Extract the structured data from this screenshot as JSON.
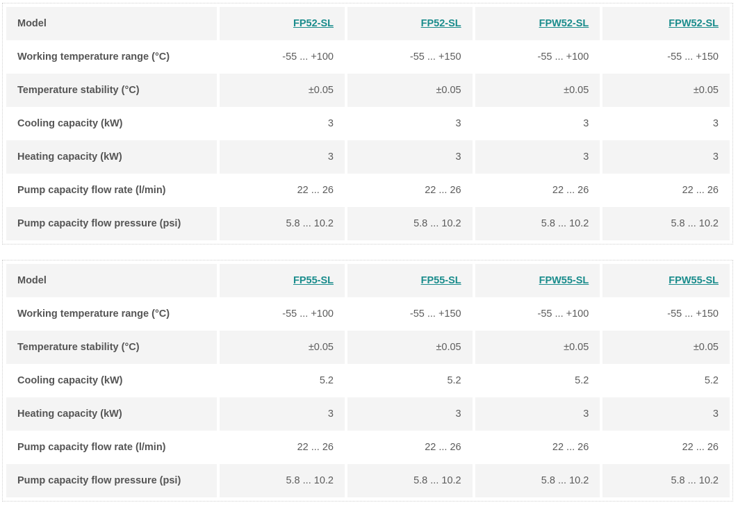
{
  "tables": [
    {
      "header": {
        "label": "Model",
        "models": [
          "FP52-SL",
          "FP52-SL",
          "FPW52-SL",
          "FPW52-SL"
        ]
      },
      "rows": [
        {
          "label": "Working temperature range (°C)",
          "values": [
            "-55 ... +100",
            "-55 ... +150",
            "-55 ... +100",
            "-55 ... +150"
          ]
        },
        {
          "label": "Temperature stability (°C)",
          "values": [
            "±0.05",
            "±0.05",
            "±0.05",
            "±0.05"
          ]
        },
        {
          "label": "Cooling capacity (kW)",
          "values": [
            "3",
            "3",
            "3",
            "3"
          ]
        },
        {
          "label": "Heating capacity (kW)",
          "values": [
            "3",
            "3",
            "3",
            "3"
          ]
        },
        {
          "label": "Pump capacity flow rate (l/min)",
          "values": [
            "22 ... 26",
            "22 ... 26",
            "22 ... 26",
            "22 ... 26"
          ]
        },
        {
          "label": "Pump capacity flow pressure (psi)",
          "values": [
            "5.8 ... 10.2",
            "5.8 ... 10.2",
            "5.8 ... 10.2",
            "5.8 ... 10.2"
          ]
        }
      ]
    },
    {
      "header": {
        "label": "Model",
        "models": [
          "FP55-SL",
          "FP55-SL",
          "FPW55-SL",
          "FPW55-SL"
        ]
      },
      "rows": [
        {
          "label": "Working temperature range (°C)",
          "values": [
            "-55 ... +100",
            "-55 ... +150",
            "-55 ... +100",
            "-55 ... +150"
          ]
        },
        {
          "label": "Temperature stability (°C)",
          "values": [
            "±0.05",
            "±0.05",
            "±0.05",
            "±0.05"
          ]
        },
        {
          "label": "Cooling capacity (kW)",
          "values": [
            "5.2",
            "5.2",
            "5.2",
            "5.2"
          ]
        },
        {
          "label": "Heating capacity (kW)",
          "values": [
            "3",
            "3",
            "3",
            "3"
          ]
        },
        {
          "label": "Pump capacity flow rate (l/min)",
          "values": [
            "22 ... 26",
            "22 ... 26",
            "22 ... 26",
            "22 ... 26"
          ]
        },
        {
          "label": "Pump capacity flow pressure (psi)",
          "values": [
            "5.8 ... 10.2",
            "5.8 ... 10.2",
            "5.8 ... 10.2",
            "5.8 ... 10.2"
          ]
        }
      ]
    }
  ],
  "colors": {
    "link": "#1a8c8c",
    "row_alt": "#f4f4f4",
    "text": "#555555"
  }
}
